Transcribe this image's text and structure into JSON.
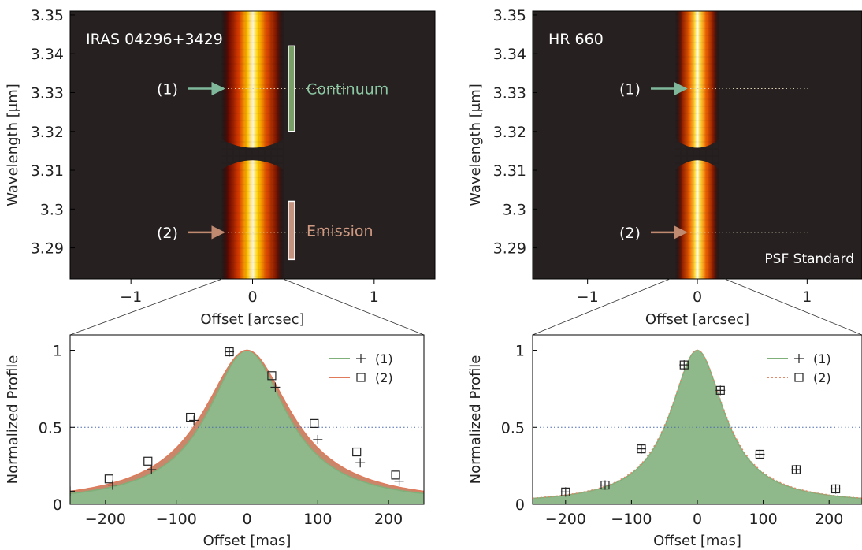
{
  "chart_data": [
    {
      "type": "heatmap",
      "panel": "top-left",
      "title": "IRAS 04296+3429",
      "xlabel": "Offset [arcsec]",
      "ylabel": "Wavelength [μm]",
      "xlim": [
        -1.5,
        1.5
      ],
      "ylim": [
        3.282,
        3.351
      ],
      "xticks": [
        -1,
        0,
        1
      ],
      "xtick_labels": [
        "−1",
        "0",
        "1"
      ],
      "yticks": [
        3.29,
        3.3,
        3.31,
        3.32,
        3.33,
        3.34,
        3.35
      ],
      "ytick_labels": [
        "3.29",
        "3.3",
        "3.31",
        "3.32",
        "3.33",
        "3.34",
        "3.35"
      ],
      "colormap": "black-red-yellow-white",
      "data_gap": [
        3.313,
        3.316
      ],
      "annotations": [
        {
          "label": "(1)",
          "wavelength": 3.331,
          "color": "#7fb79a"
        },
        {
          "label": "(2)",
          "wavelength": 3.294,
          "color": "#c08a70"
        }
      ],
      "bands": [
        {
          "label": "Continuum",
          "range": [
            3.32,
            3.342
          ],
          "color": "#7a9e68",
          "text_color": "#8cc8a4"
        },
        {
          "label": "Emission",
          "range": [
            3.287,
            3.302
          ],
          "color": "#c49380",
          "text_color": "#d09a82"
        }
      ]
    },
    {
      "type": "heatmap",
      "panel": "top-right",
      "title": "HR 660",
      "note": "PSF Standard",
      "xlabel": "Offset [arcsec]",
      "ylabel": "Wavelength [μm]",
      "xlim": [
        -1.5,
        1.5
      ],
      "ylim": [
        3.282,
        3.351
      ],
      "xticks": [
        -1,
        0,
        1
      ],
      "xtick_labels": [
        "−1",
        "0",
        "1"
      ],
      "yticks": [
        3.29,
        3.3,
        3.31,
        3.32,
        3.33,
        3.34,
        3.35
      ],
      "ytick_labels": [
        "3.29",
        "3.3",
        "3.31",
        "3.32",
        "3.33",
        "3.34",
        "3.35"
      ],
      "colormap": "black-red-yellow-white",
      "data_gap": [
        3.313,
        3.316
      ],
      "annotations": [
        {
          "label": "(1)",
          "wavelength": 3.331,
          "color": "#7fb79a"
        },
        {
          "label": "(2)",
          "wavelength": 3.294,
          "color": "#c08a70"
        }
      ]
    },
    {
      "type": "scatter",
      "panel": "bottom-left",
      "xlabel": "Offset [mas]",
      "ylabel": "Normalized Profile",
      "xlim": [
        -250,
        250
      ],
      "ylim": [
        0,
        1.1
      ],
      "xticks": [
        -200,
        -100,
        0,
        100,
        200
      ],
      "xtick_labels": [
        "−200",
        "−100",
        "0",
        "100",
        "200"
      ],
      "yticks": [
        0,
        0.5,
        1
      ],
      "ytick_labels": [
        "0",
        "0.5",
        "1"
      ],
      "half_max_line": 0.5,
      "legend": {
        "position": "top-right",
        "entries": [
          "(1)",
          "(2)"
        ]
      },
      "series": [
        {
          "name": "(1)",
          "marker": "plus",
          "line_color": "#7fb07a",
          "fill_color": "#8fb98a",
          "x": [
            -250,
            -190,
            -135,
            -75,
            -25,
            40,
            100,
            160,
            215
          ],
          "y": [
            0.085,
            0.125,
            0.225,
            0.545,
            0.99,
            0.76,
            0.42,
            0.27,
            0.15
          ]
        },
        {
          "name": "(2)",
          "marker": "square",
          "line_color": "#e07a5a",
          "fill_color": "#c8876a",
          "x": [
            -195,
            -140,
            -80,
            -25,
            35,
            95,
            155,
            210
          ],
          "y": [
            0.165,
            0.28,
            0.565,
            0.99,
            0.835,
            0.525,
            0.34,
            0.19
          ]
        }
      ]
    },
    {
      "type": "scatter",
      "panel": "bottom-right",
      "xlabel": "Offset [mas]",
      "ylabel": "Normalized Profile",
      "xlim": [
        -250,
        250
      ],
      "ylim": [
        0,
        1.1
      ],
      "xticks": [
        -200,
        -100,
        0,
        100,
        200
      ],
      "xtick_labels": [
        "−200",
        "−100",
        "0",
        "100",
        "200"
      ],
      "yticks": [
        0,
        0.5,
        1
      ],
      "ytick_labels": [
        "0",
        "0.5",
        "1"
      ],
      "half_max_line": 0.5,
      "legend": {
        "position": "top-right",
        "entries": [
          "(1)",
          "(2)"
        ]
      },
      "series": [
        {
          "name": "(1)",
          "marker": "plus",
          "line_color": "#7fb07a",
          "fill_color": "#8fb98a",
          "x": [
            -200,
            -140,
            -85,
            -20,
            35,
            95,
            150,
            210
          ],
          "y": [
            0.08,
            0.125,
            0.36,
            0.905,
            0.74,
            0.325,
            0.225,
            0.1
          ]
        },
        {
          "name": "(2)",
          "marker": "square",
          "line_color": "#e08a6a",
          "line_style": "dotted",
          "x": [
            -200,
            -140,
            -85,
            -20,
            35,
            95,
            150,
            210
          ],
          "y": [
            0.08,
            0.125,
            0.36,
            0.905,
            0.74,
            0.325,
            0.225,
            0.1
          ]
        }
      ]
    }
  ]
}
